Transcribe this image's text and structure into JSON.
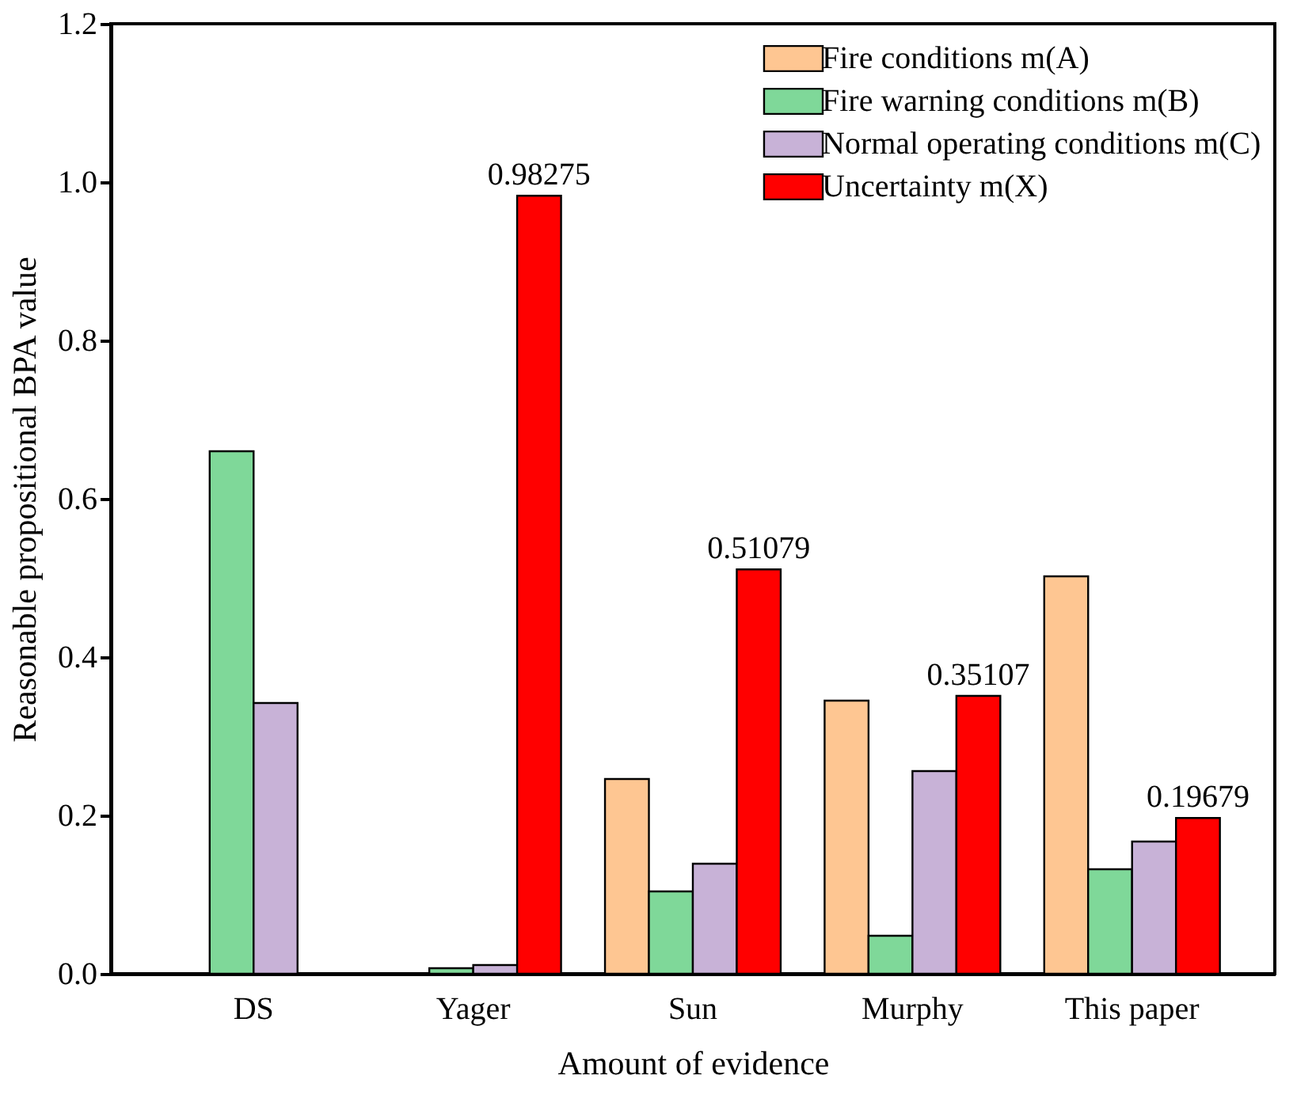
{
  "chart_data": {
    "type": "bar",
    "xlabel": "Amount of evidence",
    "ylabel": "Reasonable propositional BPA value",
    "categories": [
      "DS",
      "Yager",
      "Sun",
      "Murphy",
      "This paper"
    ],
    "series": [
      {
        "name": "Fire conditions m(A)",
        "color": "#fec692",
        "values": [
          null,
          null,
          0.246,
          0.345,
          0.502
        ]
      },
      {
        "name": "Fire warning conditions m(B)",
        "color": "#7fd899",
        "values": [
          0.66,
          0.007,
          0.104,
          0.048,
          0.132
        ]
      },
      {
        "name": "Normal operating conditions m(C)",
        "color": "#c8b2d7",
        "values": [
          0.342,
          0.011,
          0.139,
          0.256,
          0.167
        ]
      },
      {
        "name": "Uncertainty m(X)",
        "color": "#ff0000",
        "values": [
          null,
          0.98275,
          0.51079,
          0.35107,
          0.19679
        ],
        "value_labels": [
          null,
          "0.98275",
          "0.51079",
          "0.35107",
          "0.19679"
        ]
      }
    ],
    "ylim": [
      0,
      1.2
    ],
    "yticks": [
      {
        "value": 0,
        "label": "0.0"
      },
      {
        "value": 0.2,
        "label": "0.2"
      },
      {
        "value": 0.4,
        "label": "0.4"
      },
      {
        "value": 0.6,
        "label": "0.6"
      },
      {
        "value": 0.8,
        "label": "0.8"
      },
      {
        "value": 1.0,
        "label": "1.0"
      },
      {
        "value": 1.2,
        "label": "1.2"
      }
    ],
    "legend": "top right",
    "grid": false
  }
}
